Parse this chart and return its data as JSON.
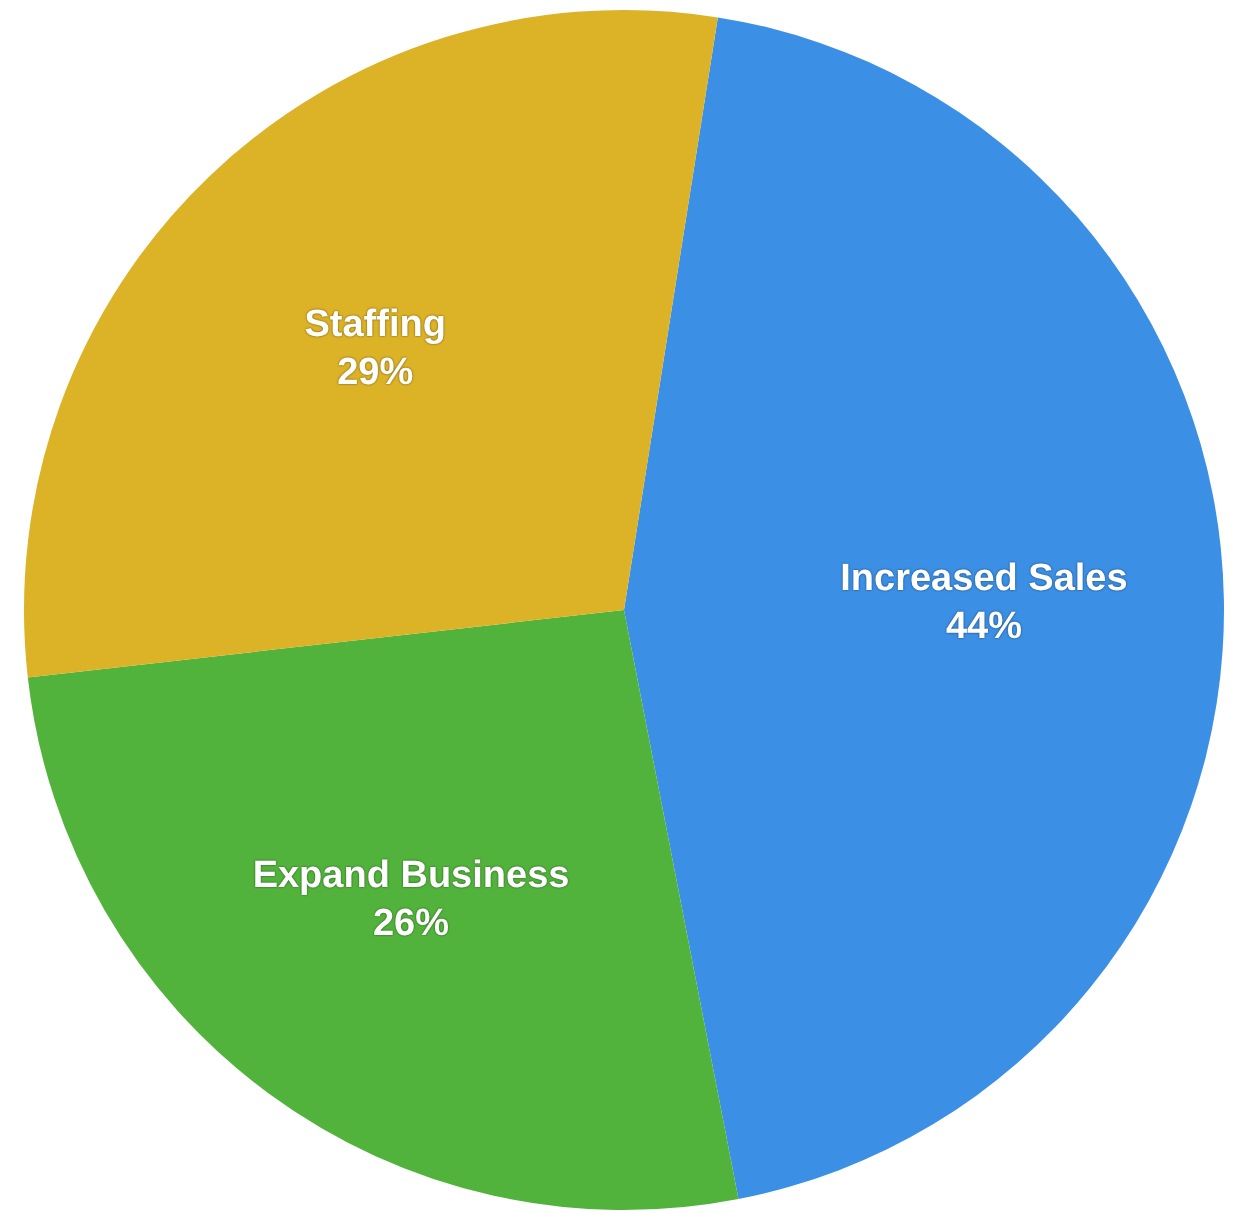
{
  "chart_data": {
    "type": "pie",
    "categories": [
      "Increased Sales",
      "Expand Business",
      "Staffing"
    ],
    "values": [
      44,
      26,
      29
    ],
    "colors": [
      "#3b8fe4",
      "#52b33c",
      "#dcb226"
    ],
    "value_labels": [
      "44%",
      "26%",
      "29%"
    ]
  }
}
